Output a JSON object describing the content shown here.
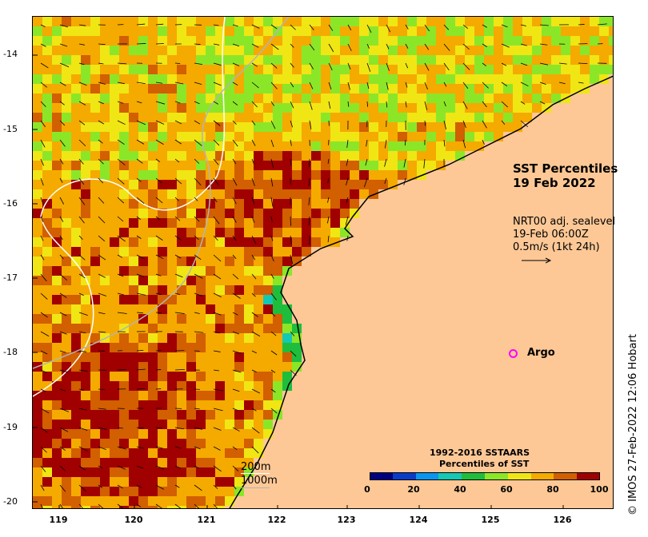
{
  "title": {
    "line1": "SST Percentiles",
    "line2": "19 Feb 2022"
  },
  "vectors_info": {
    "line1": "NRT00 adj. sealevel",
    "line2": "19-Feb 06:00Z",
    "line3": "0.5m/s (1kt 24h)"
  },
  "legend_argo": {
    "label": "Argo",
    "marker_color": "#ff00ff"
  },
  "depth_legend": {
    "line1": "200m",
    "line2": "1000m"
  },
  "colorbar": {
    "title1": "1992-2016 SSTAARS",
    "title2": "Percentiles of SST",
    "colors": [
      "#000080",
      "#0a3cc8",
      "#0a96f0",
      "#14c8b4",
      "#1ebe3c",
      "#8ce628",
      "#f0e614",
      "#f5aa00",
      "#d25f00",
      "#a00000"
    ],
    "ticks": [
      "0",
      "20",
      "40",
      "60",
      "80",
      "100"
    ]
  },
  "axes": {
    "y_ticks": [
      "-14",
      "-15",
      "-16",
      "-17",
      "-18",
      "-19",
      "-20"
    ],
    "x_ticks": [
      "119",
      "120",
      "121",
      "122",
      "123",
      "124",
      "125",
      "126"
    ]
  },
  "credit": "© IMOS 27-Feb-2022 12:06 Hobart",
  "colors": {
    "land": "#fdc896",
    "coastline": "#000000",
    "contour_200m": "#ffffff",
    "contour_1000m": "#b4b4b4",
    "argo": "#ff00ff"
  }
}
